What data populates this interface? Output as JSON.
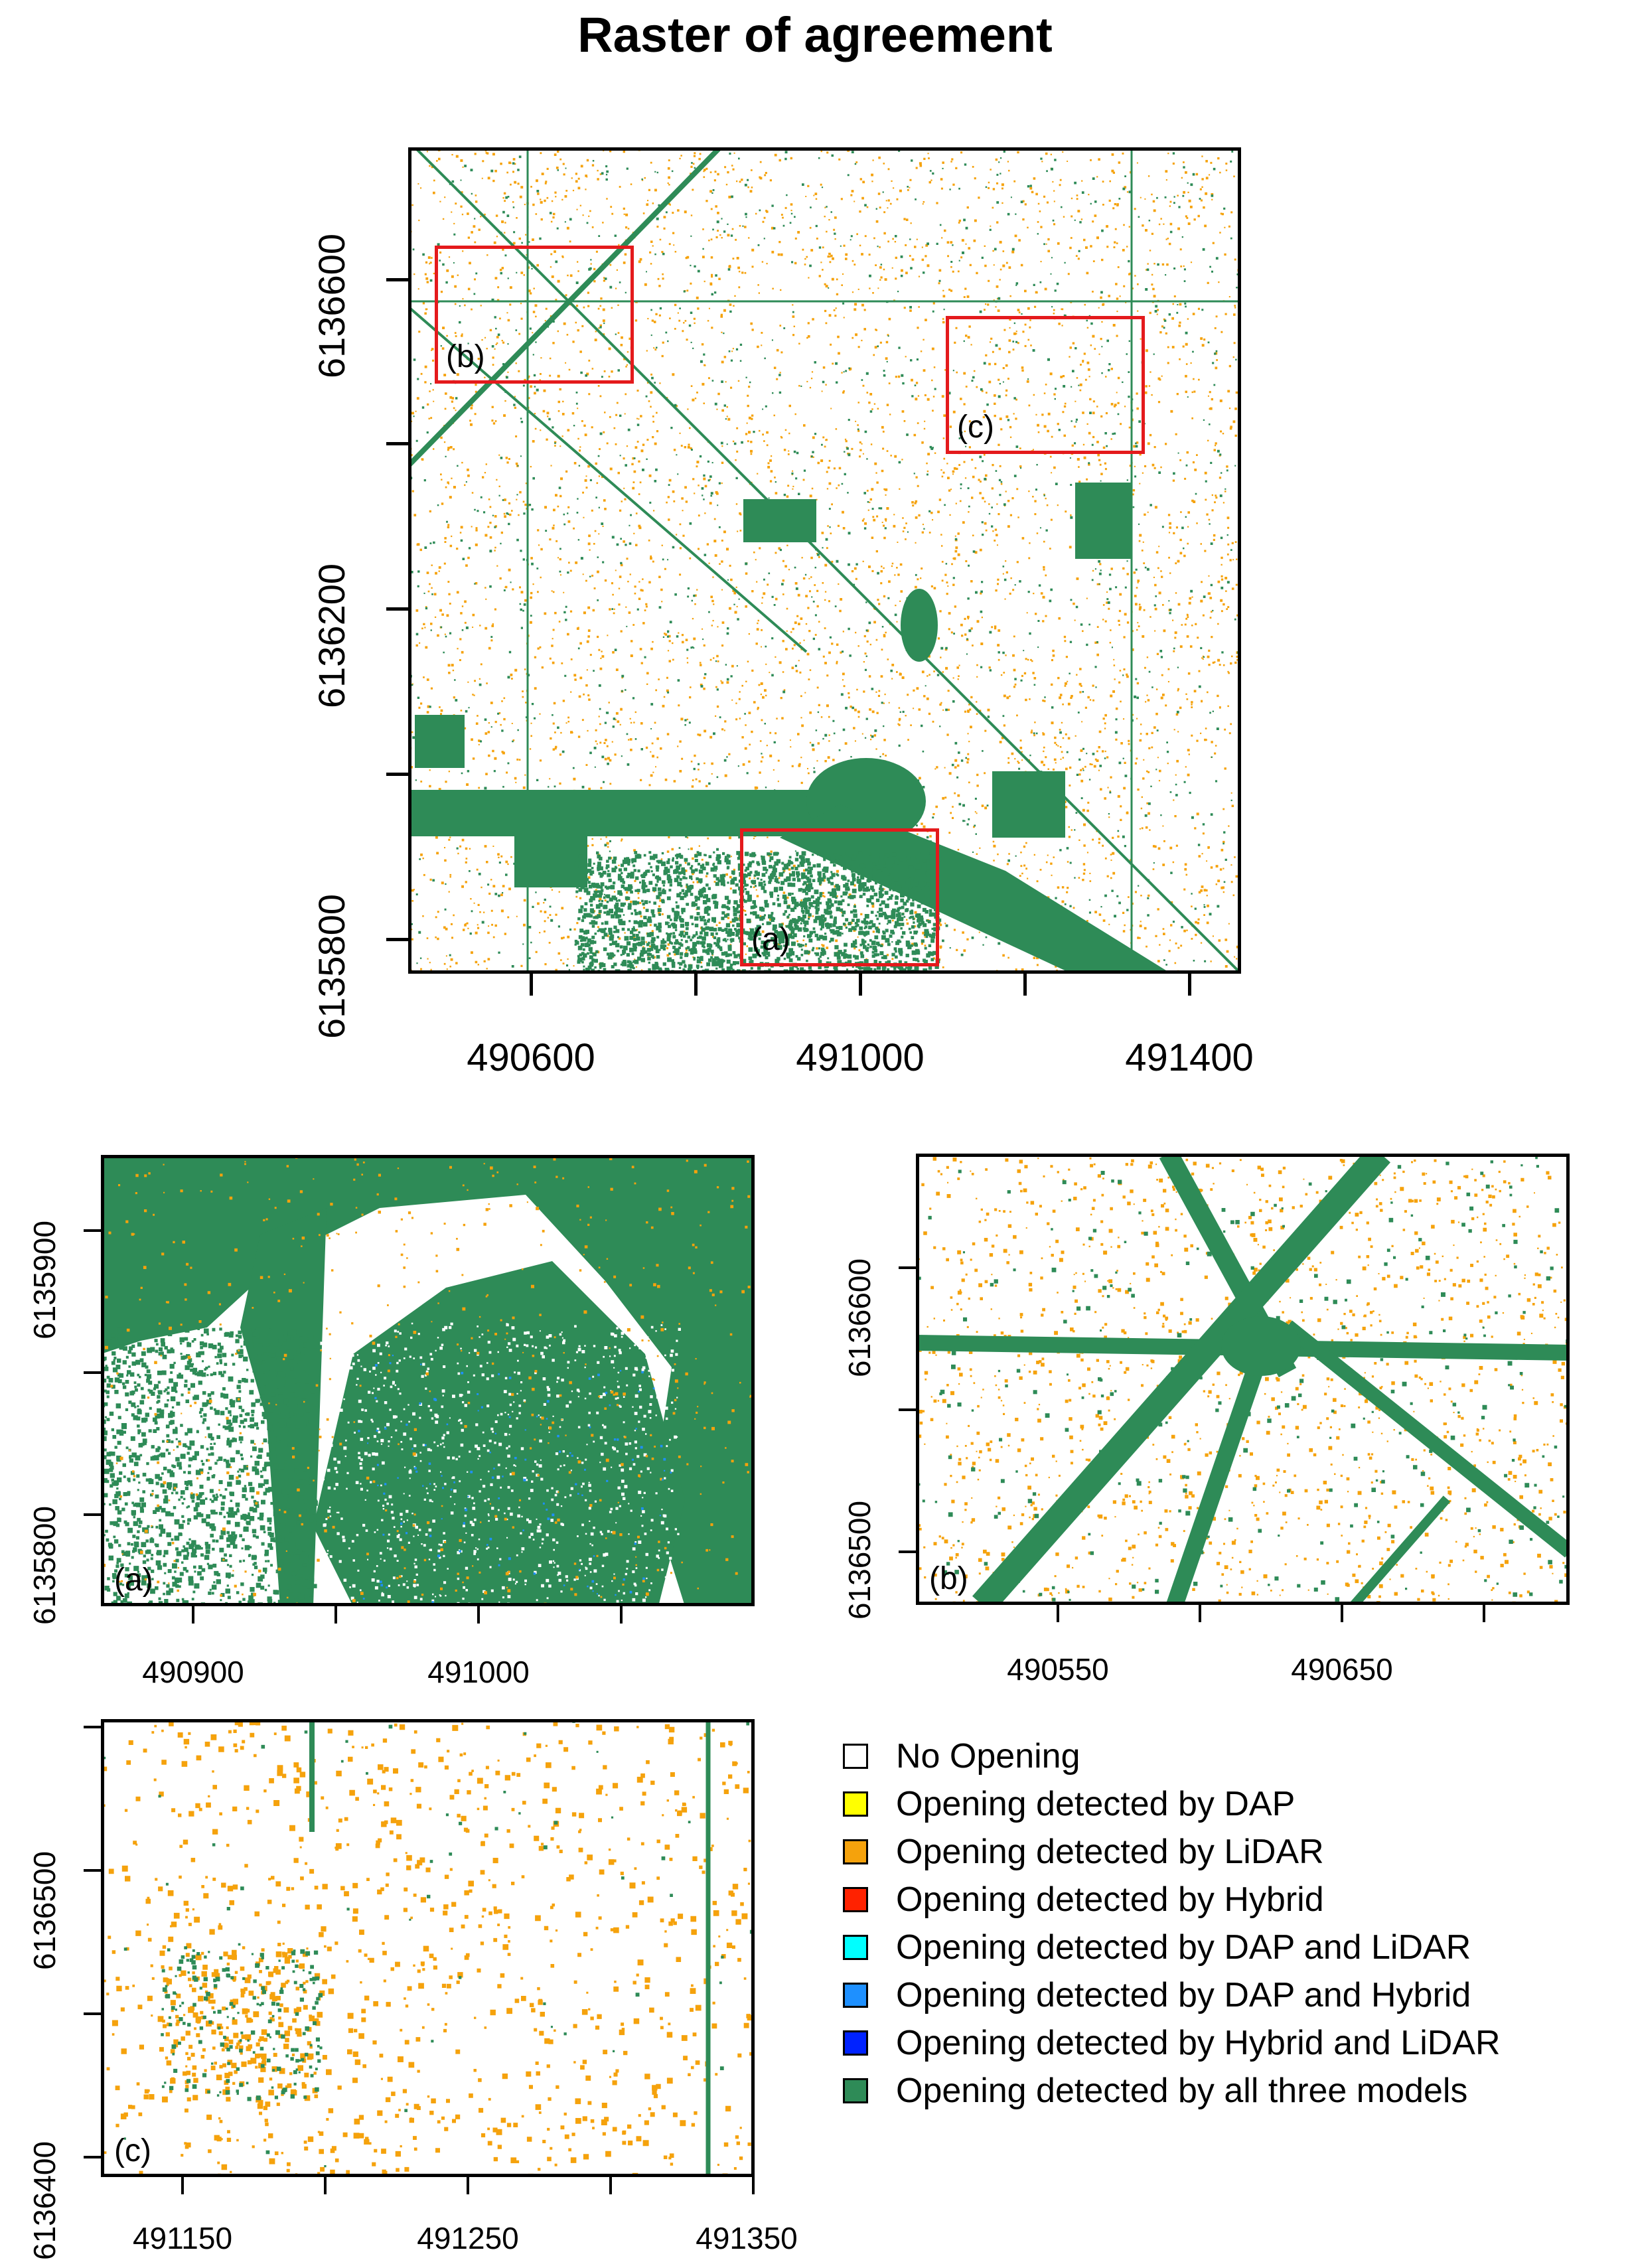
{
  "title": "Raster of agreement",
  "colors": {
    "no_opening": "#ffffff",
    "dap": "#ffff00",
    "lidar": "#f5a20c",
    "hybrid": "#ff2200",
    "dap_lidar": "#00ffff",
    "dap_hybrid": "#1e90ff",
    "hybrid_lidar": "#0022ff",
    "all_three": "#2e8b57"
  },
  "main_map": {
    "x_ticks": [
      "490600",
      "491000",
      "491400"
    ],
    "y_ticks": [
      "6135800",
      "6136200",
      "6136600"
    ],
    "insets": [
      {
        "label": "(a)"
      },
      {
        "label": "(b)"
      },
      {
        "label": "(c)"
      }
    ]
  },
  "panel_a": {
    "label": "(a)",
    "x_ticks": [
      "490900",
      "491000"
    ],
    "y_ticks": [
      "6135800",
      "6135900"
    ]
  },
  "panel_b": {
    "label": "(b)",
    "x_ticks": [
      "490550",
      "490650"
    ],
    "y_ticks": [
      "6136500",
      "6136600"
    ]
  },
  "panel_c": {
    "label": "(c)",
    "x_ticks": [
      "491150",
      "491250",
      "491350"
    ],
    "y_ticks": [
      "6136400",
      "6136500"
    ]
  },
  "legend": [
    {
      "label": "No Opening",
      "color": "#ffffff"
    },
    {
      "label": "Opening detected by DAP",
      "color": "#ffff00"
    },
    {
      "label": "Opening detected by LiDAR",
      "color": "#f5a20c"
    },
    {
      "label": "Opening detected by Hybrid",
      "color": "#ff2200"
    },
    {
      "label": "Opening detected by DAP and LiDAR",
      "color": "#00ffff"
    },
    {
      "label": "Opening detected by DAP and Hybrid",
      "color": "#1e90ff"
    },
    {
      "label": "Opening detected by Hybrid and LiDAR",
      "color": "#0022ff"
    },
    {
      "label": "Opening detected by all three models",
      "color": "#2e8b57"
    }
  ]
}
